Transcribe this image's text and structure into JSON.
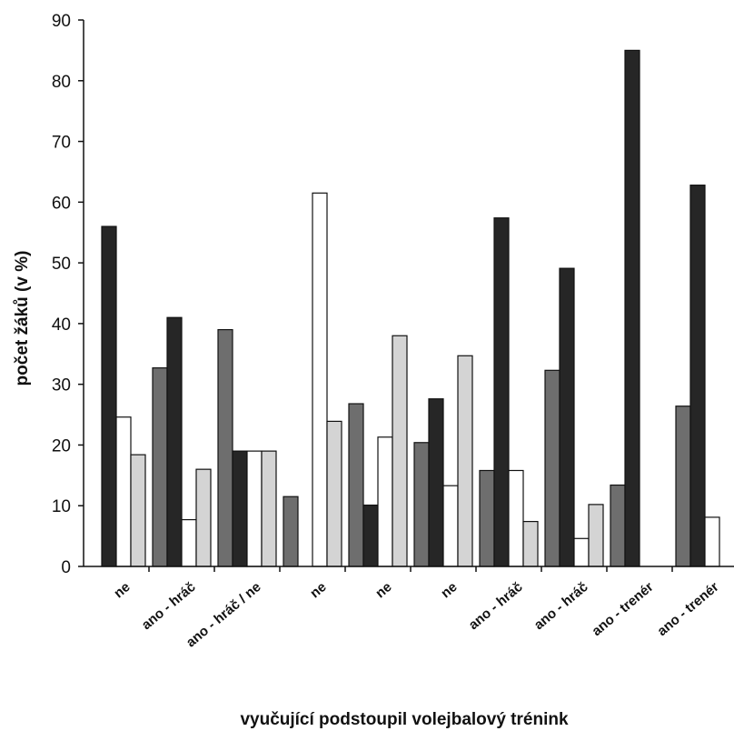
{
  "chart_data": {
    "type": "bar",
    "xlabel": "vyučující podstoupil volejbalový trénink",
    "ylabel": "počet žáků (v %)",
    "ylim": [
      0,
      90
    ],
    "yticks": [
      0,
      10,
      20,
      30,
      40,
      50,
      60,
      70,
      80,
      90
    ],
    "grid": false,
    "legend": "none",
    "categories": [
      "ne",
      "ano - hráč",
      "ano - hráč / ne",
      "ne",
      "ne",
      "ne",
      "ano - hráč",
      "ano - hráč",
      "ano - trenér",
      "ano - trenér"
    ],
    "series": [
      {
        "color": "#6e6e6e",
        "values": [
          0,
          32.7,
          39,
          11.5,
          26.8,
          20.4,
          15.8,
          32.3,
          13.4,
          26.4
        ]
      },
      {
        "color": "#262626",
        "values": [
          56,
          41,
          19,
          0,
          10.1,
          27.6,
          57.4,
          49.1,
          85,
          62.8
        ]
      },
      {
        "color": "#ffffff",
        "values": [
          24.6,
          7.7,
          19,
          61.5,
          21.3,
          13.3,
          15.8,
          4.6,
          0,
          8.1
        ]
      },
      {
        "color": "#d4d4d4",
        "values": [
          18.4,
          16,
          19,
          23.9,
          38,
          34.7,
          7.4,
          10.2,
          0,
          0
        ]
      }
    ]
  }
}
